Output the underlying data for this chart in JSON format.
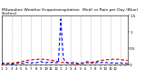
{
  "title": "Milwaukee Weather Evapotranspiration  (Red) vs Rain per Day (Blue) (Inches)",
  "title_fontsize": 3.2,
  "background_color": "#ffffff",
  "grid_color": "#888888",
  "n_points": 52,
  "evap_color": "#cc0000",
  "rain_color": "#0000dd",
  "ylim": [
    0,
    1.5
  ],
  "yticks": [
    0,
    0.5,
    1.0,
    1.5
  ],
  "ytick_labels": [
    "0",
    "0.5",
    "1",
    "1.5"
  ],
  "evap_values": [
    0.03,
    0.03,
    0.04,
    0.04,
    0.05,
    0.06,
    0.07,
    0.08,
    0.1,
    0.11,
    0.13,
    0.14,
    0.15,
    0.16,
    0.16,
    0.17,
    0.17,
    0.17,
    0.16,
    0.15,
    0.14,
    0.13,
    0.11,
    0.1,
    0.08,
    0.07,
    0.06,
    0.05,
    0.04,
    0.04,
    0.03,
    0.03,
    0.04,
    0.04,
    0.05,
    0.06,
    0.07,
    0.08,
    0.1,
    0.11,
    0.13,
    0.14,
    0.15,
    0.16,
    0.16,
    0.17,
    0.17,
    0.17,
    0.16,
    0.15,
    0.14,
    0.13
  ],
  "rain_values": [
    0.04,
    0.05,
    0.03,
    0.05,
    0.02,
    0.03,
    0.04,
    0.06,
    0.05,
    0.04,
    0.08,
    0.06,
    0.05,
    0.07,
    0.06,
    0.08,
    0.1,
    0.07,
    0.06,
    0.08,
    0.07,
    0.09,
    0.06,
    0.07,
    1.4,
    0.2,
    0.08,
    0.06,
    0.05,
    0.07,
    0.06,
    0.04,
    0.05,
    0.06,
    0.08,
    0.1,
    0.07,
    0.05,
    0.06,
    0.07,
    0.06,
    0.08,
    0.07,
    0.06,
    0.05,
    0.06,
    0.05,
    0.05,
    0.06,
    0.04,
    0.05,
    0.03
  ],
  "grid_x_positions": [
    0,
    4,
    8,
    12,
    16,
    20,
    24,
    28,
    32,
    36,
    40,
    44,
    48,
    51
  ],
  "x_tick_positions": [
    0,
    2,
    4,
    6,
    8,
    10,
    12,
    14,
    16,
    18,
    20,
    22,
    24,
    26,
    28,
    30,
    32,
    34,
    36,
    38,
    40,
    42,
    44,
    46,
    48,
    50
  ],
  "x_tick_labels": [
    "1",
    "2",
    "3",
    "4",
    "5",
    "6",
    "7",
    "8",
    "9",
    "10",
    "11",
    "12",
    "1",
    "2",
    "3",
    "4",
    "5",
    "6",
    "7",
    "8",
    "9",
    "10",
    "11",
    "12",
    "",
    ""
  ],
  "figsize": [
    1.6,
    0.87
  ],
  "dpi": 100
}
